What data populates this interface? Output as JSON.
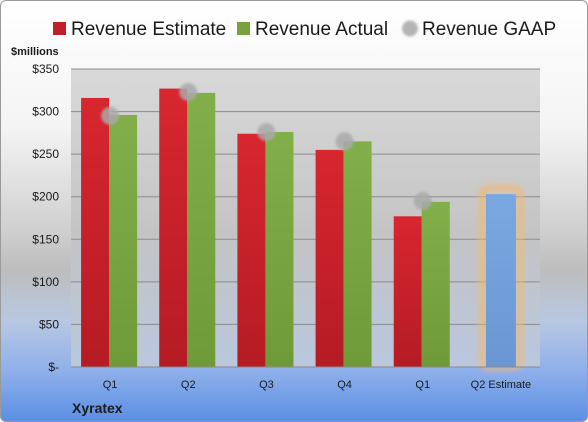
{
  "company": "Xyratex",
  "chart_data": {
    "type": "bar",
    "ylabel": "$millions",
    "ylim": [
      0,
      350
    ],
    "y_ticks": [
      0,
      50,
      100,
      150,
      200,
      250,
      300,
      350
    ],
    "y_tick_labels": [
      "$-",
      "$50",
      "$100",
      "$150",
      "$200",
      "$250",
      "$300",
      "$350"
    ],
    "categories": [
      "Q1",
      "Q2",
      "Q3",
      "Q4",
      "Q1",
      "Q2 Estimate"
    ],
    "series": [
      {
        "name": "Revenue Estimate",
        "type": "bar",
        "color": "#c0202a",
        "values": [
          316,
          327,
          274,
          255,
          177,
          null
        ]
      },
      {
        "name": "Revenue Actual",
        "type": "bar",
        "color": "#76a33f",
        "values": [
          296,
          322,
          276,
          265,
          194,
          null
        ]
      },
      {
        "name": "Revenue GAAP",
        "type": "scatter",
        "color": "#b4b4b4",
        "values": [
          295,
          323,
          276,
          265,
          195,
          null
        ]
      }
    ],
    "highlight": {
      "category_index": 5,
      "value": 203,
      "color": "#6e9fdc",
      "glow": "#f5b86c"
    },
    "legend_position": "top",
    "grid": true
  }
}
